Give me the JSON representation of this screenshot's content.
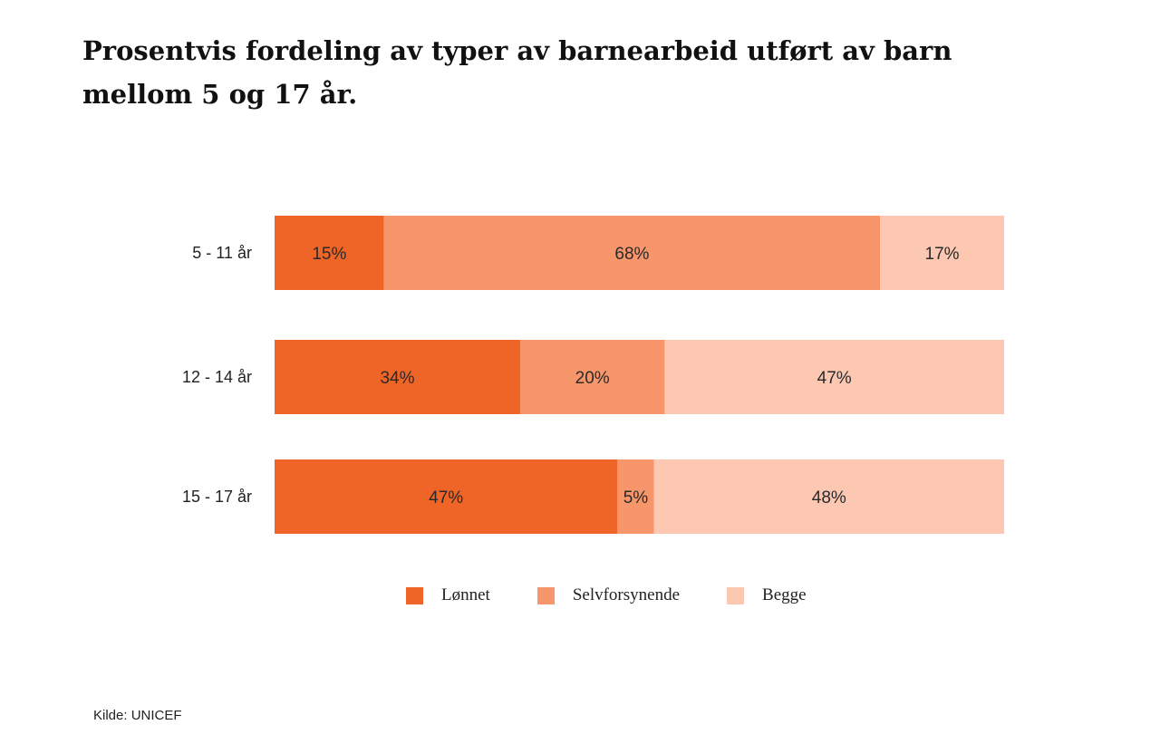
{
  "title": "Prosentvis fordeling av typer av barnearbeid utført av barn mellom 5 og 17 år.",
  "source": "Kilde: UNICEF",
  "chart_data": {
    "type": "bar",
    "orientation": "horizontal",
    "stacked": true,
    "title": "Prosentvis fordeling av typer av barnearbeid utført av barn mellom 5 og 17 år.",
    "categories": [
      "5 - 11 år",
      "12 - 14 år",
      "15 - 17 år"
    ],
    "series": [
      {
        "name": "Lønnet",
        "values": [
          15,
          34,
          47
        ],
        "labels": [
          "15%",
          "34%",
          "47%"
        ],
        "color": "#EF6527"
      },
      {
        "name": "Selvforsynende",
        "values": [
          68,
          20,
          5
        ],
        "labels": [
          "68%",
          "20%",
          "5%"
        ],
        "color": "#F6966A"
      },
      {
        "name": "Begge",
        "values": [
          17,
          47,
          48
        ],
        "labels": [
          "17%",
          "47%",
          "48%"
        ],
        "color": "#FCC8B2"
      }
    ],
    "xlim": [
      0,
      100
    ],
    "grid": false,
    "legend_position": "bottom"
  }
}
